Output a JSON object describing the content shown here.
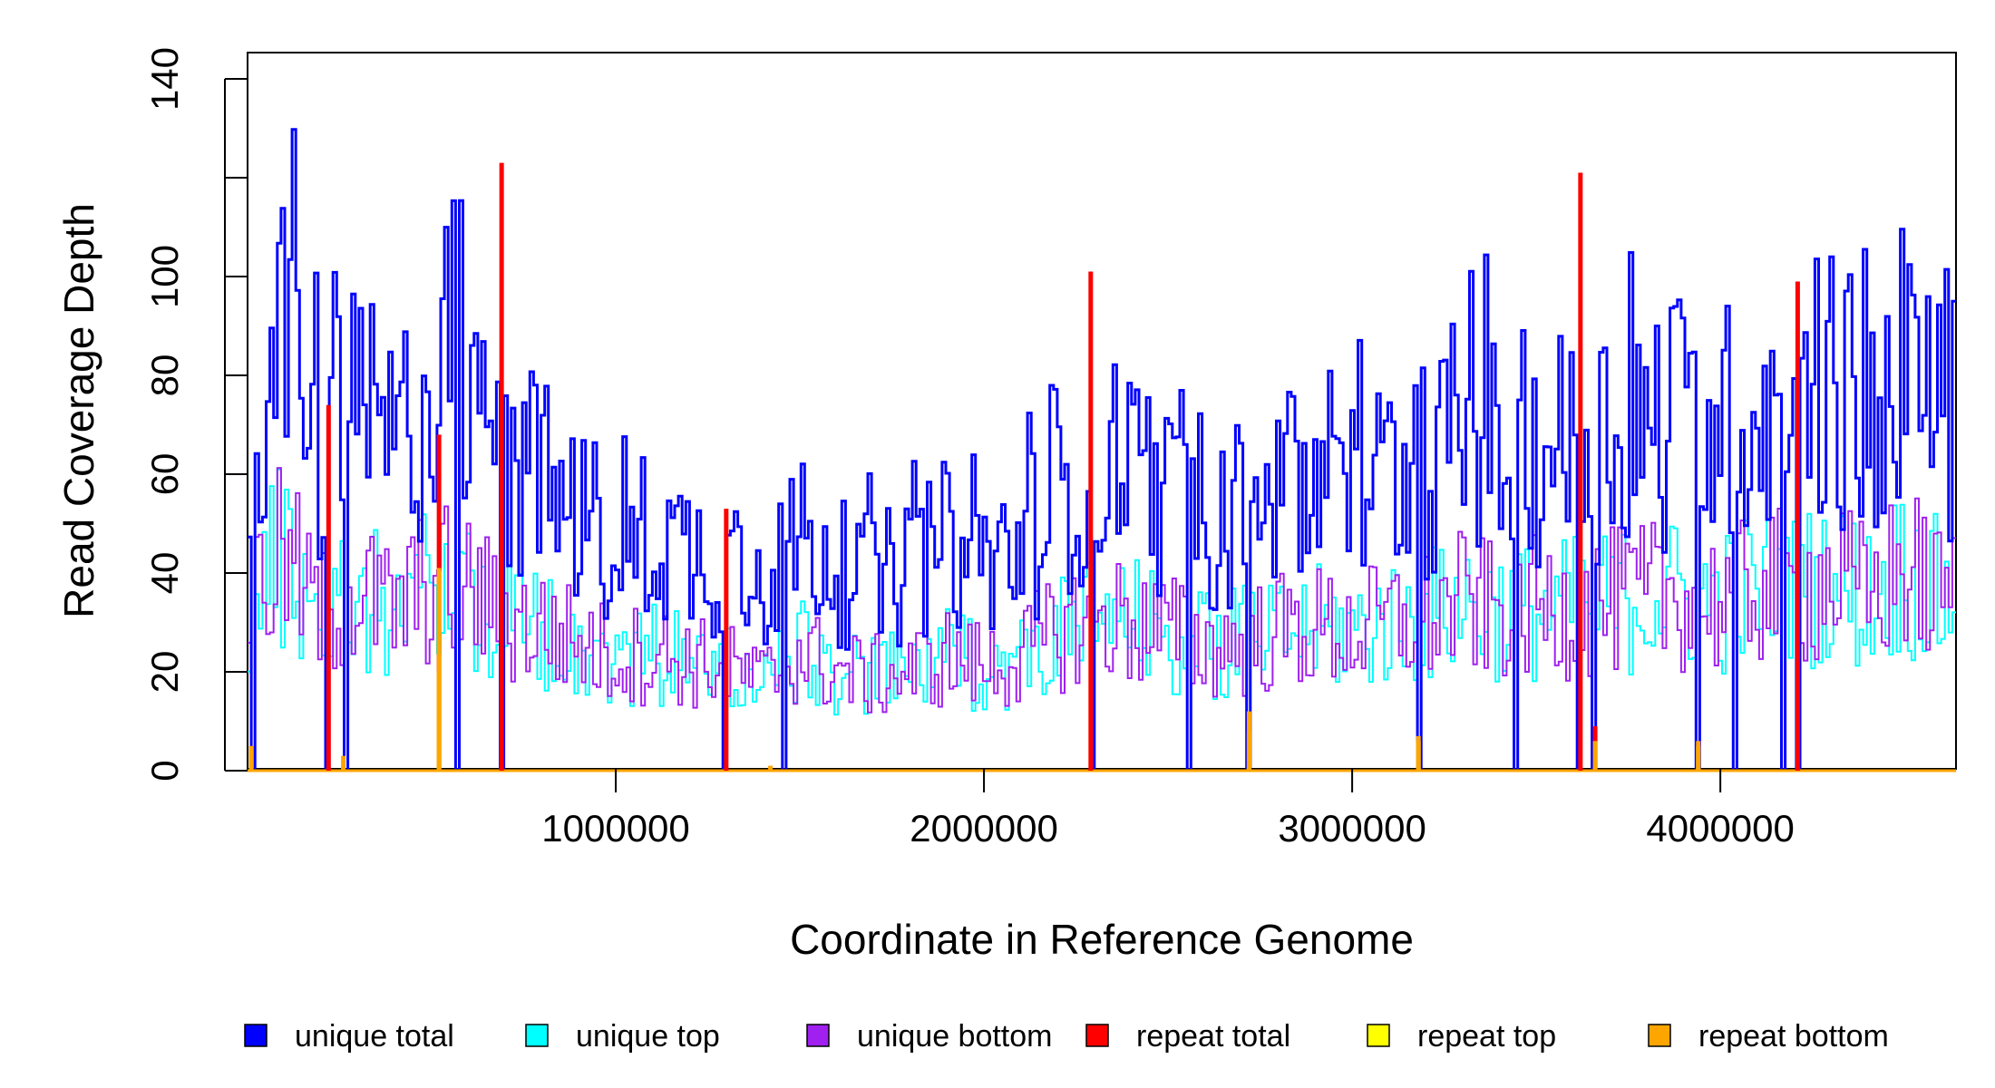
{
  "chart_data": {
    "type": "line",
    "title": "",
    "xlabel": "Coordinate in Reference Genome",
    "ylabel": "Read Coverage Depth",
    "xlim": [
      0,
      4640000
    ],
    "ylim": [
      0,
      140
    ],
    "x_ticks": [
      1000000,
      2000000,
      3000000,
      4000000
    ],
    "x_tick_labels": [
      "1000000",
      "2000000",
      "3000000",
      "4000000"
    ],
    "y_ticks": [
      0,
      20,
      40,
      60,
      80,
      100,
      120,
      140
    ],
    "y_tick_labels": [
      "0",
      "20",
      "40",
      "60",
      "80",
      "100",
      "",
      "140"
    ],
    "grid": false,
    "legend_position": "bottom",
    "series": [
      {
        "name": "unique total",
        "color": "#0000FF",
        "x": [
          0,
          100000,
          200000,
          300000,
          400000,
          500000,
          600000,
          700000,
          800000,
          900000,
          1000000,
          1100000,
          1200000,
          1300000,
          1400000,
          1500000,
          1600000,
          1700000,
          1800000,
          1900000,
          2000000,
          2100000,
          2200000,
          2300000,
          2400000,
          2500000,
          2600000,
          2700000,
          2800000,
          2900000,
          3000000,
          3100000,
          3200000,
          3300000,
          3400000,
          3500000,
          3600000,
          3700000,
          3800000,
          3900000,
          4000000,
          4100000,
          4200000,
          4300000,
          4400000,
          4500000,
          4600000
        ],
        "y": [
          70,
          88,
          62,
          72,
          65,
          76,
          74,
          60,
          58,
          52,
          45,
          48,
          44,
          42,
          36,
          48,
          40,
          38,
          40,
          46,
          42,
          45,
          55,
          62,
          60,
          55,
          50,
          52,
          55,
          58,
          56,
          60,
          62,
          68,
          64,
          65,
          66,
          68,
          70,
          72,
          68,
          75,
          72,
          78,
          70,
          82,
          70
        ]
      },
      {
        "name": "unique top",
        "color": "#00FFFF",
        "x": [
          0,
          100000,
          200000,
          300000,
          400000,
          500000,
          600000,
          700000,
          800000,
          900000,
          1000000,
          1100000,
          1200000,
          1300000,
          1400000,
          1500000,
          1600000,
          1700000,
          1800000,
          1900000,
          2000000,
          2100000,
          2200000,
          2300000,
          2400000,
          2500000,
          2600000,
          2700000,
          2800000,
          2900000,
          3000000,
          3100000,
          3200000,
          3300000,
          3400000,
          3500000,
          3600000,
          3700000,
          3800000,
          3900000,
          4000000,
          4100000,
          4200000,
          4300000,
          4400000,
          4500000,
          4600000
        ],
        "y": [
          36,
          44,
          31,
          36,
          33,
          38,
          37,
          30,
          29,
          26,
          22,
          24,
          22,
          21,
          18,
          24,
          20,
          19,
          20,
          23,
          21,
          22,
          27,
          31,
          30,
          27,
          25,
          26,
          27,
          29,
          28,
          30,
          31,
          34,
          32,
          32,
          33,
          34,
          35,
          36,
          34,
          37,
          36,
          39,
          35,
          41,
          35
        ]
      },
      {
        "name": "unique bottom",
        "color": "#A020F0",
        "x": [
          0,
          100000,
          200000,
          300000,
          400000,
          500000,
          600000,
          700000,
          800000,
          900000,
          1000000,
          1100000,
          1200000,
          1300000,
          1400000,
          1500000,
          1600000,
          1700000,
          1800000,
          1900000,
          2000000,
          2100000,
          2200000,
          2300000,
          2400000,
          2500000,
          2600000,
          2700000,
          2800000,
          2900000,
          3000000,
          3100000,
          3200000,
          3300000,
          3400000,
          3500000,
          3600000,
          3700000,
          3800000,
          3900000,
          4000000,
          4100000,
          4200000,
          4300000,
          4400000,
          4500000,
          4600000
        ],
        "y": [
          34,
          44,
          31,
          36,
          32,
          38,
          37,
          30,
          29,
          26,
          23,
          24,
          22,
          21,
          18,
          24,
          20,
          19,
          20,
          23,
          21,
          23,
          28,
          31,
          30,
          28,
          25,
          26,
          28,
          29,
          28,
          30,
          31,
          34,
          32,
          33,
          33,
          34,
          35,
          36,
          34,
          38,
          36,
          39,
          35,
          41,
          35
        ]
      },
      {
        "name": "repeat total",
        "color": "#FF0000",
        "x": [
          220000,
          520000,
          690000,
          1300000,
          2290000,
          3620000,
          3660000,
          4210000
        ],
        "y": [
          74,
          68,
          123,
          53,
          101,
          121,
          9,
          99
        ]
      },
      {
        "name": "repeat top",
        "color": "#FFFF00",
        "x": [
          520000,
          2720000,
          3180000,
          3940000
        ],
        "y": [
          20,
          8,
          6,
          5
        ]
      },
      {
        "name": "repeat bottom",
        "color": "#FFA500",
        "x": [
          10000,
          260000,
          520000,
          1420000,
          2720000,
          3180000,
          3660000,
          3940000
        ],
        "y": [
          5,
          3,
          41,
          1,
          12,
          7,
          6,
          6
        ]
      }
    ]
  }
}
